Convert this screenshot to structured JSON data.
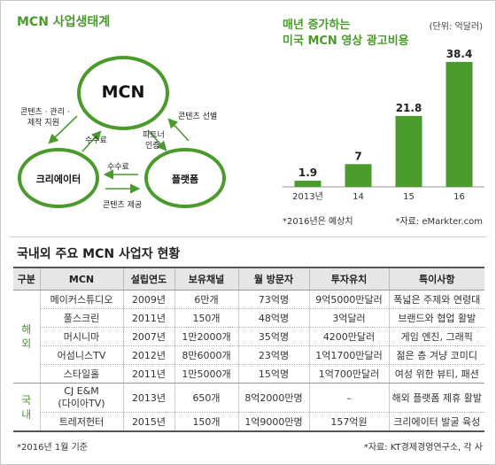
{
  "ecosystem": {
    "title": "MCN 사업생태계",
    "nodes": {
      "mcn": "MCN",
      "creator": "크리에이터",
      "platform": "플랫폼"
    },
    "edges": {
      "left_top_1": "콘텐츠 · 관리 ·",
      "left_top_2": "제작 지원",
      "fee_left": "수수료",
      "right_top": "콘텐츠 선별",
      "partner_1": "파트너",
      "partner_2": "인증",
      "fee_bottom": "수수료",
      "content_provide": "콘텐츠 제공"
    }
  },
  "chart_data": {
    "type": "bar",
    "title_line1": "매년 증가하는",
    "title_line2": "미국 MCN 영상 광고비용",
    "unit": "(단위: 억달러)",
    "categories": [
      "2013년",
      "14",
      "15",
      "16"
    ],
    "values": [
      1.9,
      7,
      21.8,
      38.4
    ],
    "value_labels": [
      "1.9",
      "7",
      "21.8",
      "38.4"
    ],
    "ylim": [
      0,
      40
    ],
    "color": "#4b9a2c",
    "note": "*2016년은 예상치",
    "source": "*자료: eMarkter.com"
  },
  "table": {
    "title": "국내외 주요 MCN 사업자 현황",
    "headers": [
      "구분",
      "MCN",
      "설립연도",
      "보유채널",
      "월 방문자",
      "투자유치",
      "특이사항"
    ],
    "groups": [
      {
        "label": "해\n외",
        "rows": [
          [
            "메이커스튜디오",
            "2009년",
            "6만개",
            "73억명",
            "9억5000만달러",
            "폭넓은 주제와 연령대"
          ],
          [
            "풀스크린",
            "2011년",
            "150개",
            "48억명",
            "3억달러",
            "브랜드와 협업 활발"
          ],
          [
            "머시니마",
            "2007년",
            "1만2000개",
            "35억명",
            "4200만달러",
            "게임 엔진, 그래픽"
          ],
          [
            "어섬니스TV",
            "2012년",
            "8만6000개",
            "23억명",
            "1억1700만달러",
            "젊은 층 겨냥 코미디"
          ],
          [
            "스타일홀",
            "2011년",
            "1만5000개",
            "15억명",
            "1억700만달러",
            "여성 위한 뷰티, 패션"
          ]
        ]
      },
      {
        "label": "국\n내",
        "rows": [
          [
            "CJ E&M\n(다이아TV)",
            "2013년",
            "650개",
            "8억2000만명",
            "–",
            "해외 플랫폼 제휴 활발"
          ],
          [
            "트레저헌터",
            "2015년",
            "150개",
            "1억9000만명",
            "157억원",
            "크리에이터 발굴 육성"
          ]
        ]
      }
    ],
    "footnote_left": "*2016년 1월 기준",
    "footnote_right": "*자료: KT경제경영연구소, 각 사"
  }
}
